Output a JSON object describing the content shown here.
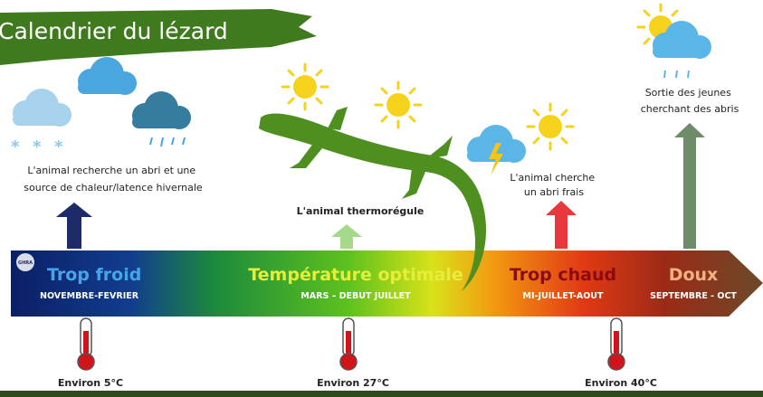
{
  "title": "Calendrier du lézard",
  "logo": "GHRA",
  "phases": [
    {
      "name": "Trop froid",
      "period": "NOVEMBRE-FEVRIER",
      "description_lines": [
        "L'animal recherche un abri et une",
        "source de chaleur/latence hivernale"
      ],
      "temperature": "Environ 5°C"
    },
    {
      "name": "Température optimale",
      "period": "MARS – DEBUT JUILLET",
      "description_lines": [
        "L'animal thermorégule"
      ],
      "temperature": "Environ 27°C"
    },
    {
      "name": "Trop chaud",
      "period": "MI-JUILLET-AOUT",
      "description_lines": [
        "L'animal cherche",
        "un abri frais"
      ],
      "temperature": "Environ 40°C"
    },
    {
      "name": "Doux",
      "period": "SEPTEMBRE - OCT",
      "description_lines": [
        "Sortie des jeunes",
        "cherchant des abris"
      ]
    }
  ]
}
